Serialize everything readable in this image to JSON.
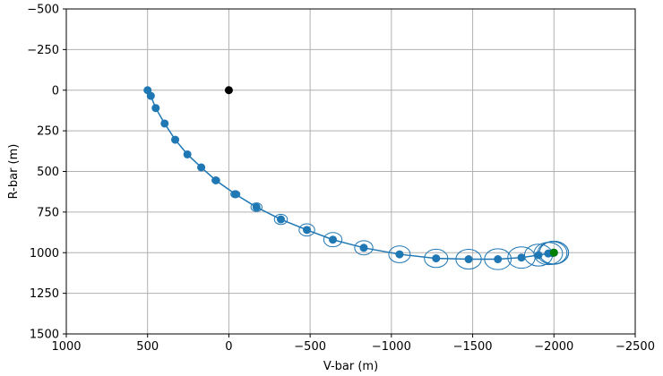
{
  "chart_data": {
    "type": "scatter",
    "xlabel": "V-bar (m)",
    "ylabel": "R-bar (m)",
    "xlim": [
      1000,
      -2500
    ],
    "ylim": [
      1500,
      -500
    ],
    "x_inverted": true,
    "y_inverted": true,
    "grid": true,
    "x_ticks": [
      1000,
      500,
      0,
      -500,
      -1000,
      -1500,
      -2000,
      -2500
    ],
    "y_ticks": [
      -500,
      -250,
      0,
      250,
      500,
      750,
      1000,
      1250,
      1500
    ],
    "x_tick_labels": [
      "1000",
      "500",
      "0",
      "−500",
      "−1000",
      "−1500",
      "−2000",
      "−2500"
    ],
    "y_tick_labels": [
      "−500",
      "−250",
      "0",
      "250",
      "500",
      "750",
      "1000",
      "1250",
      "1500"
    ],
    "colors": {
      "trajectory": "#1f77b4",
      "origin": "#000000",
      "end": "#008000"
    },
    "series": [
      {
        "kind": "trajectory",
        "points": [
          {
            "x": 500,
            "y": 0,
            "unc": 10
          },
          {
            "x": 480,
            "y": 35,
            "unc": 12
          },
          {
            "x": 450,
            "y": 110,
            "unc": 14
          },
          {
            "x": 395,
            "y": 205,
            "unc": 16
          },
          {
            "x": 330,
            "y": 305,
            "unc": 18
          },
          {
            "x": 255,
            "y": 395,
            "unc": 20
          },
          {
            "x": 170,
            "y": 475,
            "unc": 22
          },
          {
            "x": 80,
            "y": 555,
            "unc": 24
          },
          {
            "x": -40,
            "y": 640,
            "unc": 28
          },
          {
            "x": -170,
            "y": 720,
            "unc": 34
          },
          {
            "x": -320,
            "y": 795,
            "unc": 40
          },
          {
            "x": -480,
            "y": 860,
            "unc": 48
          },
          {
            "x": -640,
            "y": 920,
            "unc": 56
          },
          {
            "x": -830,
            "y": 970,
            "unc": 56
          },
          {
            "x": -1050,
            "y": 1010,
            "unc": 66
          },
          {
            "x": -1275,
            "y": 1035,
            "unc": 72
          },
          {
            "x": -1475,
            "y": 1040,
            "unc": 78
          },
          {
            "x": -1655,
            "y": 1040,
            "unc": 82
          },
          {
            "x": -1800,
            "y": 1030,
            "unc": 84
          },
          {
            "x": -1905,
            "y": 1015,
            "unc": 86
          },
          {
            "x": -1965,
            "y": 1005,
            "unc": 88
          },
          {
            "x": -1990,
            "y": 1002,
            "unc": 90
          },
          {
            "x": -2000,
            "y": 1000,
            "unc": 90
          },
          {
            "x": -2000,
            "y": 1000,
            "unc": 90
          },
          {
            "x": -2000,
            "y": 1000,
            "unc": 90
          }
        ]
      },
      {
        "kind": "origin",
        "x": 0,
        "y": 0
      },
      {
        "kind": "end",
        "x": -2000,
        "y": 1000
      }
    ]
  }
}
